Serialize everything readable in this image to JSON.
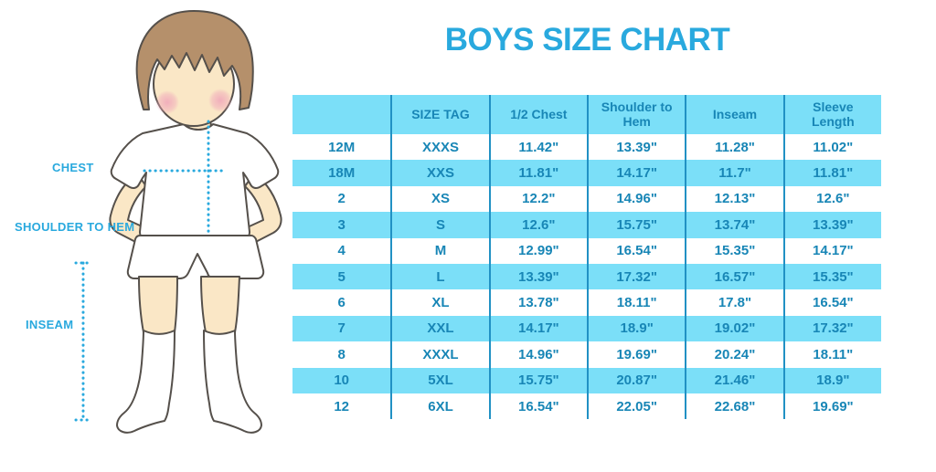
{
  "title": "BOYS SIZE CHART",
  "illustration": {
    "labels": {
      "chest": "CHEST",
      "shoulder_to_hem": "SHOULDER TO HEM",
      "inseam": "INSEAM"
    }
  },
  "table": {
    "headers": [
      "",
      "SIZE TAG",
      "1/2 Chest",
      "Shoulder to Hem",
      "Inseam",
      "Sleeve Length"
    ],
    "rows": [
      [
        "12M",
        "XXXS",
        "11.42\"",
        "13.39\"",
        "11.28\"",
        "11.02\""
      ],
      [
        "18M",
        "XXS",
        "11.81\"",
        "14.17\"",
        "11.7\"",
        "11.81\""
      ],
      [
        "2",
        "XS",
        "12.2\"",
        "14.96\"",
        "12.13\"",
        "12.6\""
      ],
      [
        "3",
        "S",
        "12.6\"",
        "15.75\"",
        "13.74\"",
        "13.39\""
      ],
      [
        "4",
        "M",
        "12.99\"",
        "16.54\"",
        "15.35\"",
        "14.17\""
      ],
      [
        "5",
        "L",
        "13.39\"",
        "17.32\"",
        "16.57\"",
        "15.35\""
      ],
      [
        "6",
        "XL",
        "13.78\"",
        "18.11\"",
        "17.8\"",
        "16.54\""
      ],
      [
        "7",
        "XXL",
        "14.17\"",
        "18.9\"",
        "19.02\"",
        "17.32\""
      ],
      [
        "8",
        "XXXL",
        "14.96\"",
        "19.69\"",
        "20.24\"",
        "18.11\""
      ],
      [
        "10",
        "5XL",
        "15.75\"",
        "20.87\"",
        "21.46\"",
        "18.9\""
      ],
      [
        "12",
        "6XL",
        "16.54\"",
        "22.05\"",
        "22.68\"",
        "19.69\""
      ]
    ]
  },
  "chart_data": {
    "type": "table",
    "title": "BOYS SIZE CHART",
    "columns": [
      "",
      "SIZE TAG",
      "1/2 Chest",
      "Shoulder to Hem",
      "Inseam",
      "Sleeve Length"
    ],
    "rows": [
      [
        "12M",
        "XXXS",
        "11.42\"",
        "13.39\"",
        "11.28\"",
        "11.02\""
      ],
      [
        "18M",
        "XXS",
        "11.81\"",
        "14.17\"",
        "11.7\"",
        "11.81\""
      ],
      [
        "2",
        "XS",
        "12.2\"",
        "14.96\"",
        "12.13\"",
        "12.6\""
      ],
      [
        "3",
        "S",
        "12.6\"",
        "15.75\"",
        "13.74\"",
        "13.39\""
      ],
      [
        "4",
        "M",
        "12.99\"",
        "16.54\"",
        "15.35\"",
        "14.17\""
      ],
      [
        "5",
        "L",
        "13.39\"",
        "17.32\"",
        "16.57\"",
        "15.35\""
      ],
      [
        "6",
        "XL",
        "13.78\"",
        "18.11\"",
        "17.8\"",
        "16.54\""
      ],
      [
        "7",
        "XXL",
        "14.17\"",
        "18.9\"",
        "19.02\"",
        "17.32\""
      ],
      [
        "8",
        "XXXL",
        "14.96\"",
        "19.69\"",
        "20.24\"",
        "18.11\""
      ],
      [
        "10",
        "5XL",
        "15.75\"",
        "20.87\"",
        "21.46\"",
        "18.9\""
      ],
      [
        "12",
        "6XL",
        "16.54\"",
        "22.05\"",
        "22.68\"",
        "19.69\""
      ]
    ],
    "annotations": [
      "CHEST",
      "SHOULDER TO HEM",
      "INSEAM"
    ],
    "legend_position": "none",
    "grid": false
  },
  "colors": {
    "accent": "#29a9de",
    "tabletext": "#1886b6",
    "stripe": "#7bdff8",
    "line": "#2191c4",
    "skin": "#fae7c6",
    "hair": "#b5906b",
    "outline": "#55504b"
  }
}
